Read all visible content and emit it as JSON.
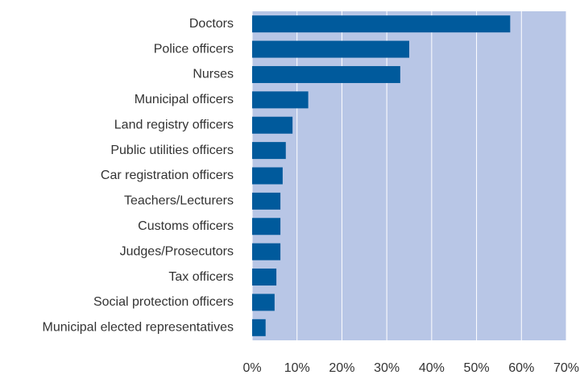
{
  "chart_data": {
    "type": "barh",
    "categories": [
      "Doctors",
      "Police officers",
      "Nurses",
      "Municipal officers",
      "Land registry officers",
      "Public utilities officers",
      "Car registration officers",
      "Teachers/Lecturers",
      "Customs officers",
      "Judges/Prosecutors",
      "Tax officers",
      "Social protection officers",
      "Municipal elected representatives"
    ],
    "values": [
      57.5,
      35,
      33,
      12.5,
      9,
      7.5,
      6.8,
      6.3,
      6.3,
      6.3,
      5.4,
      5,
      3
    ],
    "color": "#005a9c",
    "xlim": [
      0,
      70
    ],
    "xticks": [
      {
        "value": 0,
        "label": "0%"
      },
      {
        "value": 10,
        "label": "10%"
      },
      {
        "value": 20,
        "label": "20%"
      },
      {
        "value": 30,
        "label": "30%"
      },
      {
        "value": 40,
        "label": "40%"
      },
      {
        "value": 50,
        "label": "50%"
      },
      {
        "value": 60,
        "label": "60%"
      },
      {
        "value": 70,
        "label": "70%"
      }
    ],
    "grid": true
  }
}
